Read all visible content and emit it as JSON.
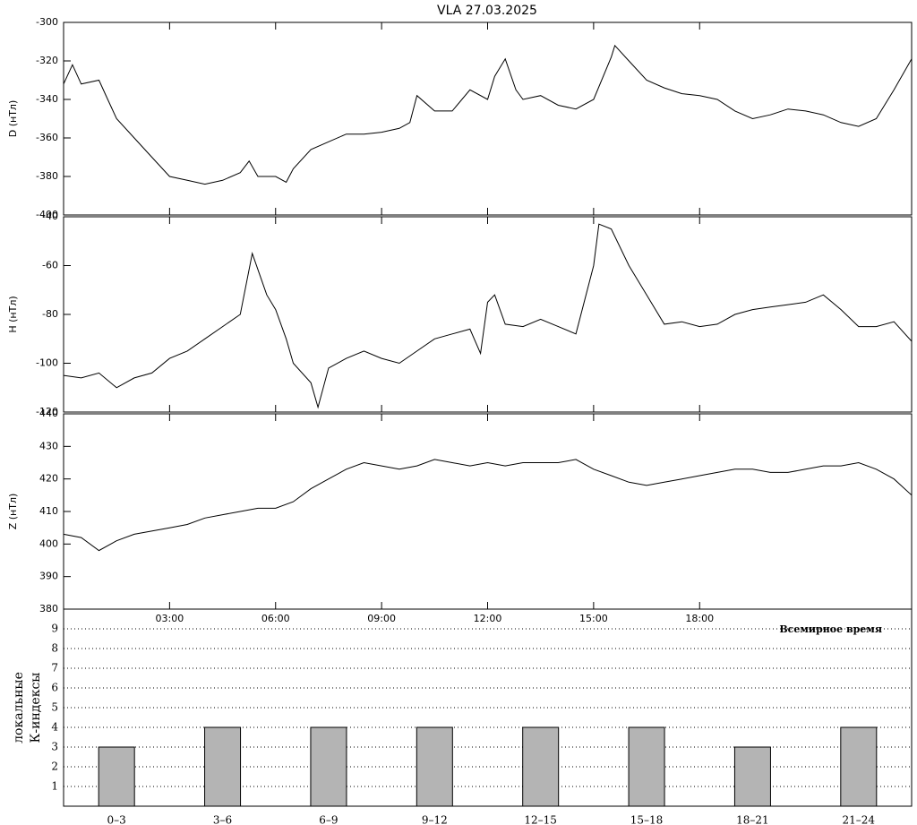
{
  "chart_data": [
    {
      "type": "line",
      "title": "VLA   27.03.2025",
      "ylabel": "D (нТл)",
      "color": "#000000",
      "ylim": [
        -400,
        -300
      ],
      "yticks": [
        -400,
        -380,
        -360,
        -340,
        -320,
        -300
      ],
      "x": [
        0,
        0.25,
        0.5,
        1,
        1.25,
        1.5,
        2,
        2.5,
        3,
        3.5,
        4,
        4.5,
        5,
        5.25,
        5.5,
        6,
        6.3,
        6.5,
        7,
        7.5,
        8,
        8.5,
        9,
        9.5,
        9.8,
        10,
        10.5,
        11,
        11.5,
        12,
        12.2,
        12.5,
        12.8,
        13,
        13.5,
        14,
        14.5,
        15,
        15.5,
        15.6,
        16,
        16.5,
        17,
        17.5,
        18,
        18.5,
        19,
        19.5,
        20,
        20.5,
        21,
        21.5,
        22,
        22.5,
        23,
        23.5,
        24
      ],
      "values": [
        -332,
        -322,
        -332,
        -330,
        -340,
        -350,
        -360,
        -370,
        -380,
        -382,
        -384,
        -382,
        -378,
        -372,
        -380,
        -380,
        -383,
        -376,
        -366,
        -362,
        -358,
        -358,
        -357,
        -355,
        -352,
        -338,
        -346,
        -346,
        -335,
        -340,
        -328,
        -319,
        -335,
        -340,
        -338,
        -343,
        -345,
        -340,
        -318,
        -312,
        -320,
        -330,
        -334,
        -337,
        -338,
        -340,
        -346,
        -350,
        -348,
        -345,
        -346,
        -348,
        -352,
        -354,
        -350,
        -335,
        -319
      ]
    },
    {
      "type": "line",
      "ylabel": "H (нТл)",
      "color": "#000000",
      "ylim": [
        -120,
        -40
      ],
      "yticks": [
        -120,
        -100,
        -80,
        -60,
        -40
      ],
      "x": [
        0,
        0.5,
        1,
        1.5,
        2,
        2.5,
        3,
        3.5,
        4,
        4.5,
        5,
        5.34,
        5.75,
        6,
        6.3,
        6.5,
        7,
        7.2,
        7.5,
        8,
        8.5,
        9,
        9.5,
        10,
        10.5,
        11,
        11.5,
        11.8,
        12,
        12.2,
        12.5,
        13,
        13.5,
        14,
        14.5,
        15,
        15.15,
        15.5,
        16,
        16.5,
        17,
        17.5,
        18,
        18.5,
        19,
        19.5,
        20,
        20.5,
        21,
        21.5,
        22,
        22.5,
        23,
        23.5,
        24
      ],
      "values": [
        -105,
        -106,
        -104,
        -110,
        -106,
        -104,
        -98,
        -95,
        -90,
        -85,
        -80,
        -55,
        -72,
        -78,
        -90,
        -100,
        -108,
        -118,
        -102,
        -98,
        -95,
        -98,
        -100,
        -95,
        -90,
        -88,
        -86,
        -96,
        -75,
        -72,
        -84,
        -85,
        -82,
        -85,
        -88,
        -60,
        -43,
        -45,
        -60,
        -72,
        -84,
        -83,
        -85,
        -84,
        -80,
        -78,
        -77,
        -76,
        -75,
        -72,
        -78,
        -85,
        -85,
        -83,
        -91
      ]
    },
    {
      "type": "line",
      "ylabel": "Z (нТл)",
      "xlabel": "Всемирное время",
      "color": "#000000",
      "ylim": [
        380,
        440
      ],
      "yticks": [
        380,
        390,
        400,
        410,
        420,
        430,
        440
      ],
      "xlim": [
        0,
        24
      ],
      "xticks": [
        {
          "value": 3,
          "label": "03:00"
        },
        {
          "value": 6,
          "label": "06:00"
        },
        {
          "value": 9,
          "label": "09:00"
        },
        {
          "value": 12,
          "label": "12:00"
        },
        {
          "value": 15,
          "label": "15:00"
        },
        {
          "value": 18,
          "label": "18:00"
        }
      ],
      "x": [
        0,
        0.5,
        1,
        1.5,
        2,
        3,
        3.5,
        4,
        4.5,
        5,
        5.5,
        6,
        6.5,
        7,
        7.5,
        8,
        8.5,
        9,
        9.5,
        10,
        10.5,
        11,
        11.5,
        12,
        12.5,
        13,
        13.5,
        14,
        14.5,
        15,
        15.5,
        16,
        16.5,
        17,
        17.5,
        18,
        18.5,
        19,
        19.5,
        20,
        20.5,
        21,
        21.5,
        22,
        22.5,
        23,
        23.5,
        24
      ],
      "values": [
        403,
        402,
        398,
        401,
        403,
        405,
        406,
        408,
        409,
        410,
        411,
        411,
        413,
        417,
        420,
        423,
        425,
        424,
        423,
        424,
        426,
        425,
        424,
        425,
        424,
        425,
        425,
        425,
        426,
        423,
        421,
        419,
        418,
        419,
        420,
        421,
        422,
        423,
        423,
        422,
        422,
        423,
        424,
        424,
        425,
        423,
        420,
        415
      ]
    },
    {
      "type": "bar",
      "ylabel": [
        "локальные",
        "К-индексы"
      ],
      "color": "#b4b4b4",
      "grid": true,
      "ylim": [
        0,
        10
      ],
      "yticks": [
        1,
        2,
        3,
        4,
        5,
        6,
        7,
        8,
        9
      ],
      "categories": [
        "0–3",
        "3–6",
        "6–9",
        "9–12",
        "12–15",
        "15–18",
        "18–21",
        "21–24"
      ],
      "values": [
        3,
        4,
        4,
        4,
        4,
        4,
        3,
        4
      ]
    }
  ]
}
